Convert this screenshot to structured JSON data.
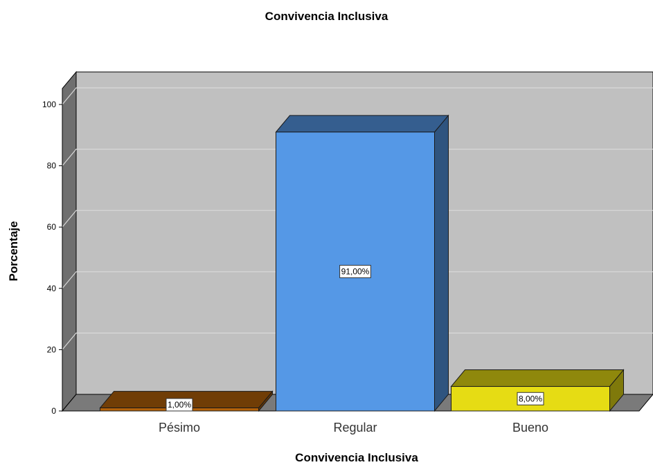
{
  "chart_data": {
    "type": "bar",
    "title": "Convivencia Inclusiva",
    "xlabel": "Convivencia Inclusiva",
    "ylabel": "Porcentaje",
    "categories": [
      "Pésimo",
      "Regular",
      "Bueno"
    ],
    "values": [
      1,
      91,
      8
    ],
    "data_labels": [
      "1,00%",
      "91,00%",
      "8,00%"
    ],
    "colors": [
      "#b4620a",
      "#5598e6",
      "#e6dc14"
    ],
    "ylim": [
      0,
      100
    ],
    "yticks": [
      "0",
      "20",
      "40",
      "60",
      "80",
      "100"
    ],
    "grid": true,
    "style": "3d"
  }
}
